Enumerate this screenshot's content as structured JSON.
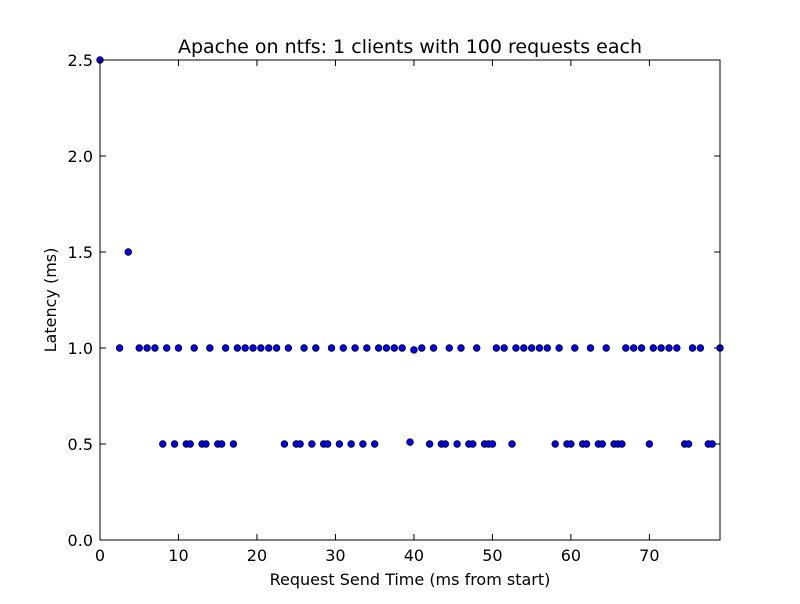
{
  "chart_data": {
    "type": "scatter",
    "title": "Apache on ntfs: 1 clients with 100 requests each",
    "xlabel": "Request Send Time (ms from start)",
    "ylabel": "Latency (ms)",
    "xlim": [
      0,
      79
    ],
    "ylim": [
      0,
      2.5
    ],
    "xticks": [
      0,
      10,
      20,
      30,
      40,
      50,
      60,
      70
    ],
    "yticks": [
      0.0,
      0.5,
      1.0,
      1.5,
      2.0,
      2.5
    ],
    "xtick_labels": [
      "0",
      "10",
      "20",
      "30",
      "40",
      "50",
      "60",
      "70"
    ],
    "ytick_labels": [
      "0.0",
      "0.5",
      "1.0",
      "1.5",
      "2.0",
      "2.5"
    ],
    "grid": false,
    "marker_color": "#0000ff",
    "marker_edge_color": "#000000",
    "series": [
      {
        "points": [
          [
            2.5,
            1.0
          ],
          [
            3.6,
            1.5
          ],
          [
            5.0,
            1.0
          ],
          [
            6.0,
            1.0
          ],
          [
            7.0,
            1.0
          ],
          [
            8.0,
            0.5
          ],
          [
            8.5,
            1.0
          ],
          [
            9.5,
            0.5
          ],
          [
            10.0,
            1.0
          ],
          [
            11.0,
            0.5
          ],
          [
            11.5,
            0.5
          ],
          [
            12.0,
            1.0
          ],
          [
            13.0,
            0.5
          ],
          [
            13.5,
            0.5
          ],
          [
            14.0,
            1.0
          ],
          [
            15.0,
            0.5
          ],
          [
            15.5,
            0.5
          ],
          [
            16.0,
            1.0
          ],
          [
            17.0,
            0.5
          ],
          [
            17.5,
            1.0
          ],
          [
            18.5,
            1.0
          ],
          [
            19.5,
            1.0
          ],
          [
            20.5,
            1.0
          ],
          [
            21.5,
            1.0
          ],
          [
            22.5,
            1.0
          ],
          [
            23.5,
            0.5
          ],
          [
            24.0,
            1.0
          ],
          [
            25.0,
            0.5
          ],
          [
            25.5,
            0.5
          ],
          [
            26.0,
            1.0
          ],
          [
            27.0,
            0.5
          ],
          [
            27.5,
            1.0
          ],
          [
            28.5,
            0.5
          ],
          [
            29.0,
            0.5
          ],
          [
            29.5,
            1.0
          ],
          [
            30.5,
            0.5
          ],
          [
            31.0,
            1.0
          ],
          [
            32.0,
            0.5
          ],
          [
            32.5,
            1.0
          ],
          [
            33.5,
            0.5
          ],
          [
            34.0,
            1.0
          ],
          [
            35.0,
            0.5
          ],
          [
            35.5,
            1.0
          ],
          [
            36.5,
            1.0
          ],
          [
            37.5,
            1.0
          ],
          [
            38.5,
            1.0
          ],
          [
            39.5,
            0.51
          ],
          [
            40.0,
            0.99
          ],
          [
            41.0,
            1.0
          ],
          [
            42.0,
            0.5
          ],
          [
            42.5,
            1.0
          ],
          [
            43.5,
            0.5
          ],
          [
            44.0,
            0.5
          ],
          [
            44.5,
            1.0
          ],
          [
            45.5,
            0.5
          ],
          [
            46.0,
            1.0
          ],
          [
            47.0,
            0.5
          ],
          [
            47.5,
            0.5
          ],
          [
            48.0,
            1.0
          ],
          [
            49.0,
            0.5
          ],
          [
            49.5,
            0.5
          ],
          [
            50.0,
            0.5
          ],
          [
            50.5,
            1.0
          ],
          [
            51.5,
            1.0
          ],
          [
            52.5,
            0.5
          ],
          [
            53.0,
            1.0
          ],
          [
            54.0,
            1.0
          ],
          [
            55.0,
            1.0
          ],
          [
            56.0,
            1.0
          ],
          [
            57.0,
            1.0
          ],
          [
            58.0,
            0.5
          ],
          [
            58.5,
            1.0
          ],
          [
            59.5,
            0.5
          ],
          [
            60.0,
            0.5
          ],
          [
            60.5,
            1.0
          ],
          [
            61.5,
            0.5
          ],
          [
            62.0,
            0.5
          ],
          [
            62.5,
            1.0
          ],
          [
            63.5,
            0.5
          ],
          [
            64.0,
            0.5
          ],
          [
            64.5,
            1.0
          ],
          [
            65.5,
            0.5
          ],
          [
            66.0,
            0.5
          ],
          [
            66.5,
            0.5
          ],
          [
            67.0,
            1.0
          ],
          [
            68.0,
            1.0
          ],
          [
            69.0,
            1.0
          ],
          [
            70.0,
            0.5
          ],
          [
            70.5,
            1.0
          ],
          [
            71.5,
            1.0
          ],
          [
            72.5,
            1.0
          ],
          [
            73.5,
            1.0
          ],
          [
            74.5,
            0.5
          ],
          [
            75.0,
            0.5
          ],
          [
            75.5,
            1.0
          ],
          [
            76.5,
            1.0
          ],
          [
            77.5,
            0.5
          ],
          [
            78.0,
            0.5
          ],
          [
            79.0,
            1.0
          ],
          [
            0.0,
            2.5
          ]
        ]
      }
    ]
  }
}
